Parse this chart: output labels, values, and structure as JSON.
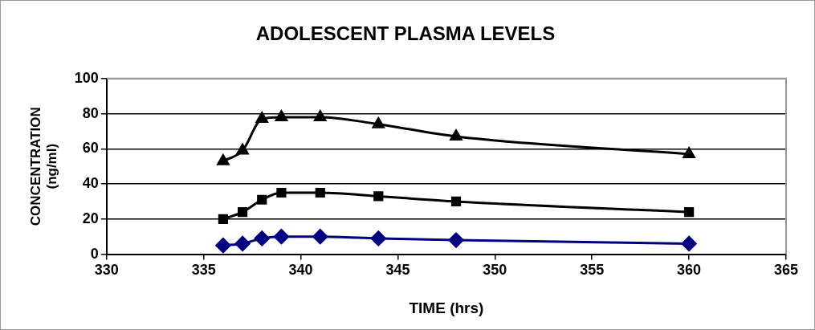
{
  "chart_data": {
    "type": "line",
    "title": "ADOLESCENT PLASMA LEVELS",
    "xlabel": "TIME (hrs)",
    "ylabel": "CONCENTRATION (ng/ml)",
    "x": [
      336,
      337,
      338,
      339,
      341,
      344,
      348,
      360
    ],
    "series": [
      {
        "color": "#000000",
        "marker": "triangle",
        "values": [
          53,
          59,
          77,
          78,
          78,
          74,
          67,
          57
        ]
      },
      {
        "color": "#000000",
        "marker": "square",
        "values": [
          20,
          24,
          31,
          35,
          35,
          33,
          30,
          24
        ]
      },
      {
        "color": "#000080",
        "marker": "diamond",
        "values": [
          5,
          6,
          9,
          10,
          10,
          9,
          8,
          6
        ]
      }
    ],
    "xlim": [
      330,
      365
    ],
    "xticks": [
      330,
      335,
      340,
      345,
      350,
      355,
      360,
      365
    ],
    "ylim": [
      0,
      100
    ],
    "yticks": [
      0,
      20,
      40,
      60,
      80,
      100
    ],
    "grid": "y",
    "legend": false
  }
}
